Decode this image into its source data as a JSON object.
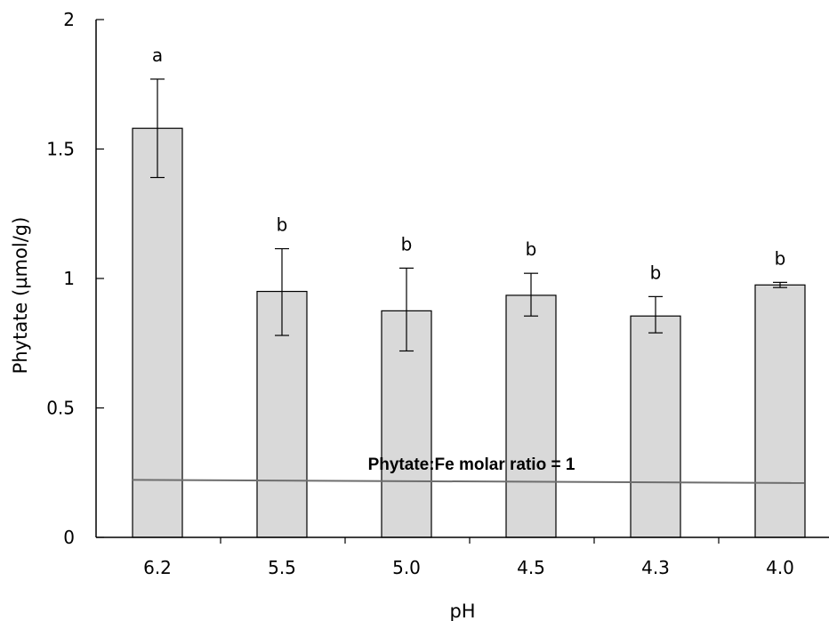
{
  "chart_data": {
    "type": "bar",
    "title": "",
    "xlabel": "pH",
    "ylabel": "Phytate (µmol/g)",
    "ylim": [
      0,
      2
    ],
    "yticks": [
      "0",
      "0.5",
      "1",
      "1.5",
      "2"
    ],
    "ytick_values": [
      0,
      0.5,
      1,
      1.5,
      2
    ],
    "categories": [
      "6.2",
      "5.5",
      "5.0",
      "4.5",
      "4.3",
      "4.0"
    ],
    "series": [
      {
        "values": [
          1.58,
          0.95,
          0.875,
          0.935,
          0.855,
          0.975
        ],
        "error_low": [
          1.39,
          0.78,
          0.72,
          0.855,
          0.79,
          0.965
        ],
        "error_high": [
          1.77,
          1.115,
          1.04,
          1.02,
          0.93,
          0.985
        ],
        "significance": [
          "a",
          "b",
          "b",
          "b",
          "b",
          "b"
        ],
        "color": "#d9d9d9"
      }
    ],
    "reference_line": {
      "label": "Phytate:Fe molar ratio = 1",
      "y_start": 0.222,
      "y_end": 0.21,
      "color": "#6e6e6e"
    },
    "grid": false,
    "legend": "none"
  }
}
